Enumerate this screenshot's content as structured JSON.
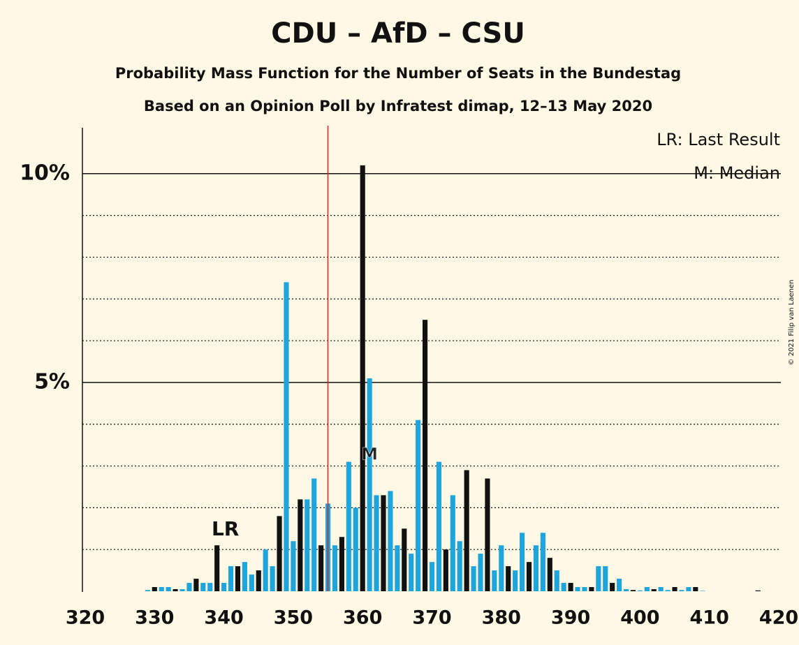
{
  "chart_data": {
    "type": "bar",
    "title": "CDU – AfD – CSU",
    "subtitle": "Probability Mass Function for the Number of Seats in the Bundestag",
    "subtitle2": "Based on an Opinion Poll by Infratest dimap, 12–13 May 2020",
    "copyright": "© 2021 Filip van Laenen",
    "legend_lr": "LR: Last Result",
    "legend_median": "M: Median",
    "last_result": {
      "x": 339,
      "label": "LR"
    },
    "median": {
      "x": 361,
      "label": "M"
    },
    "majority": {
      "x": 355,
      "color": "#e02020"
    },
    "x": [
      320,
      321,
      322,
      323,
      324,
      325,
      326,
      327,
      328,
      329,
      330,
      331,
      332,
      333,
      334,
      335,
      336,
      337,
      338,
      339,
      340,
      341,
      342,
      343,
      344,
      345,
      346,
      347,
      348,
      349,
      350,
      351,
      352,
      353,
      354,
      355,
      356,
      357,
      358,
      359,
      360,
      361,
      362,
      363,
      364,
      365,
      366,
      367,
      368,
      369,
      370,
      371,
      372,
      373,
      374,
      375,
      376,
      377,
      378,
      379,
      380,
      381,
      382,
      383,
      384,
      385,
      386,
      387,
      388,
      389,
      390,
      391,
      392,
      393,
      394,
      395,
      396,
      397,
      398,
      399,
      400,
      401,
      402,
      403,
      404,
      405,
      406,
      407,
      408,
      409,
      410,
      411,
      412,
      413,
      414,
      415,
      416,
      417,
      418,
      419,
      420
    ],
    "values": [
      0,
      0,
      0,
      0,
      0,
      0,
      0,
      0,
      0,
      0.03,
      0.1,
      0.1,
      0.1,
      0.05,
      0.05,
      0.2,
      0.3,
      0.2,
      0.2,
      1.1,
      0.2,
      0.6,
      0.6,
      0.7,
      0.4,
      0.5,
      1.0,
      0.6,
      1.8,
      7.4,
      1.2,
      2.2,
      2.2,
      2.7,
      1.1,
      2.1,
      1.1,
      1.3,
      3.1,
      2.0,
      10.2,
      5.1,
      2.3,
      2.3,
      2.4,
      1.1,
      1.5,
      0.9,
      4.1,
      6.5,
      0.7,
      3.1,
      1.0,
      2.3,
      1.2,
      2.9,
      0.6,
      0.9,
      2.7,
      0.5,
      1.1,
      0.6,
      0.5,
      1.4,
      0.7,
      1.1,
      1.4,
      0.8,
      0.5,
      0.2,
      0.2,
      0.1,
      0.1,
      0.1,
      0.6,
      0.6,
      0.2,
      0.3,
      0.05,
      0.03,
      0.02,
      0.1,
      0.05,
      0.1,
      0.03,
      0.1,
      0.03,
      0.1,
      0.1,
      0.01,
      0,
      0,
      0,
      0,
      0,
      0,
      0,
      0.02,
      0,
      0,
      0
    ],
    "colors": {
      "dark": "#111111",
      "light": "#1ea5dc"
    },
    "dark_every": 3,
    "dark_offset": 339,
    "xlim": [
      320,
      420
    ],
    "xticks": [
      320,
      330,
      340,
      350,
      360,
      370,
      380,
      390,
      400,
      410,
      420
    ],
    "ylim": [
      0,
      11.1
    ],
    "yticks": [
      {
        "value": 5,
        "label": "5%"
      },
      {
        "value": 10,
        "label": "10%"
      }
    ],
    "minor_yticks": [
      1,
      2,
      3,
      4,
      6,
      7,
      8,
      9
    ],
    "grid": true
  }
}
